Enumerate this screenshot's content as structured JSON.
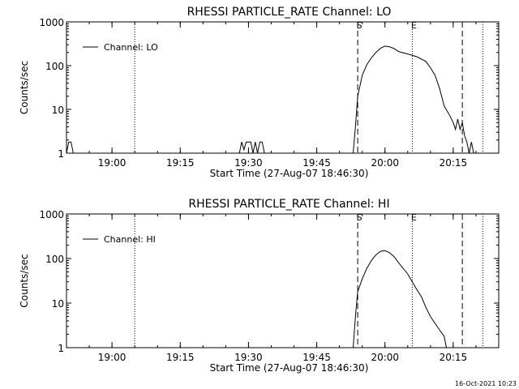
{
  "footer_stamp": "16-Oct-2021 10:23",
  "chart_data": [
    {
      "type": "line",
      "title": "RHESSI PARTICLE_RATE Channel: LO",
      "xlabel": "Start Time (27-Aug-07 18:46:30)",
      "ylabel": "Counts/sec",
      "y_scale": "log",
      "ylim": [
        1,
        1000
      ],
      "y_ticks": [
        "1",
        "10",
        "100",
        "1000"
      ],
      "xlim": [
        "18:50",
        "20:25"
      ],
      "x_ticks": [
        "19:00",
        "19:15",
        "19:30",
        "19:45",
        "20:00",
        "20:15"
      ],
      "legend": "top-left",
      "legend_placement": "top-left",
      "series": [
        {
          "name": "Channel: LO",
          "x": [
            "18:50:00",
            "18:50:30",
            "18:51:00",
            "18:51:30",
            "19:28:00",
            "19:28:30",
            "19:29:00",
            "19:29:30",
            "19:30:30",
            "19:31:00",
            "19:31:30",
            "19:32:00",
            "19:32:30",
            "19:33:00",
            "19:33:30",
            "19:34:00",
            "19:53:00",
            "19:53:30",
            "19:54:00",
            "19:55:00",
            "19:56:00",
            "19:57:00",
            "19:58:00",
            "19:59:00",
            "20:00:00",
            "20:01:00",
            "20:02:00",
            "20:03:00",
            "20:05:00",
            "20:07:00",
            "20:09:00",
            "20:10:00",
            "20:11:00",
            "20:12:00",
            "20:13:00",
            "20:14:00",
            "20:15:00",
            "20:15:30",
            "20:16:00",
            "20:16:30",
            "20:17:00",
            "20:17:30",
            "20:18:00",
            "20:18:30",
            "20:19:00",
            "20:19:30"
          ],
          "values": [
            1,
            1.8,
            1.8,
            1,
            1,
            1.8,
            1.2,
            1.8,
            1.8,
            1,
            1.8,
            1,
            1.8,
            1.8,
            1,
            1,
            1,
            4,
            20,
            60,
            105,
            150,
            200,
            250,
            280,
            270,
            245,
            210,
            185,
            160,
            125,
            90,
            60,
            30,
            12,
            8,
            5,
            3.5,
            6,
            3.5,
            5,
            2.5,
            1.8,
            1,
            1.8,
            1
          ]
        }
      ],
      "vlines": [
        {
          "x": "19:05:00",
          "style": "dotted"
        },
        {
          "x": "19:54:00",
          "style": "dashed",
          "label": "S"
        },
        {
          "x": "20:06:00",
          "style": "dotted",
          "label": "E"
        },
        {
          "x": "20:17:00",
          "style": "dashed"
        },
        {
          "x": "20:21:30",
          "style": "dotted"
        }
      ]
    },
    {
      "type": "line",
      "title": "RHESSI PARTICLE_RATE Channel: HI",
      "xlabel": "Start Time (27-Aug-07 18:46:30)",
      "ylabel": "Counts/sec",
      "y_scale": "log",
      "ylim": [
        1,
        1000
      ],
      "y_ticks": [
        "1",
        "10",
        "100",
        "1000"
      ],
      "xlim": [
        "18:50",
        "20:25"
      ],
      "x_ticks": [
        "19:00",
        "19:15",
        "19:30",
        "19:45",
        "20:00",
        "20:15"
      ],
      "legend": "top-left",
      "legend_placement": "top-left",
      "series": [
        {
          "name": "Channel: HI",
          "x": [
            "19:53:00",
            "19:53:30",
            "19:54:00",
            "19:55:00",
            "19:56:00",
            "19:57:00",
            "19:58:00",
            "19:59:00",
            "20:00:00",
            "20:01:00",
            "20:02:00",
            "20:03:00",
            "20:05:00",
            "20:07:00",
            "20:08:00",
            "20:09:00",
            "20:10:00",
            "20:11:00",
            "20:12:00",
            "20:13:00",
            "20:13:30"
          ],
          "values": [
            1,
            5,
            18,
            35,
            60,
            90,
            120,
            145,
            150,
            135,
            110,
            80,
            45,
            20,
            14,
            8,
            5,
            3.5,
            2.5,
            1.8,
            1
          ]
        }
      ],
      "vlines": [
        {
          "x": "19:05:00",
          "style": "dotted"
        },
        {
          "x": "19:54:00",
          "style": "dashed",
          "label": "S"
        },
        {
          "x": "20:06:00",
          "style": "dotted",
          "label": "E"
        },
        {
          "x": "20:17:00",
          "style": "dashed"
        },
        {
          "x": "20:21:30",
          "style": "dotted"
        }
      ]
    }
  ]
}
